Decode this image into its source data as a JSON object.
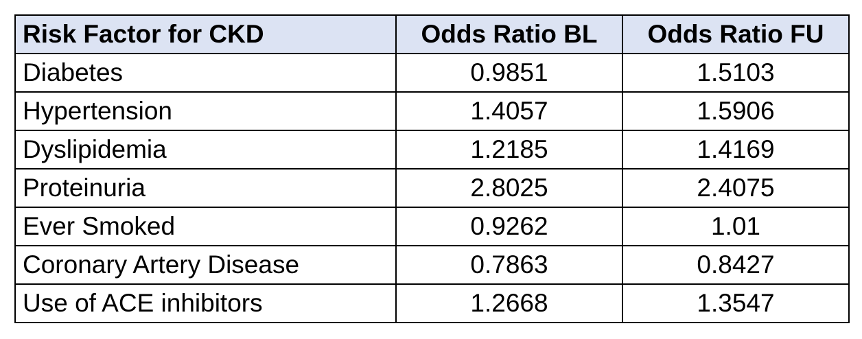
{
  "chart_data": {
    "type": "table",
    "columns": [
      "Risk Factor for CKD",
      "Odds Ratio BL",
      "Odds Ratio FU"
    ],
    "rows": [
      [
        "Diabetes",
        "0.9851",
        "1.5103"
      ],
      [
        "Hypertension",
        "1.4057",
        "1.5906"
      ],
      [
        "Dyslipidemia",
        "1.2185",
        "1.4169"
      ],
      [
        "Proteinuria",
        "2.8025",
        "2.4075"
      ],
      [
        "Ever Smoked",
        "0.9262",
        "1.01"
      ],
      [
        "Coronary Artery Disease",
        "0.7863",
        "0.8427"
      ],
      [
        "Use of ACE inhibitors",
        "1.2668",
        "1.3547"
      ]
    ],
    "header_color": "#dce3f3"
  }
}
